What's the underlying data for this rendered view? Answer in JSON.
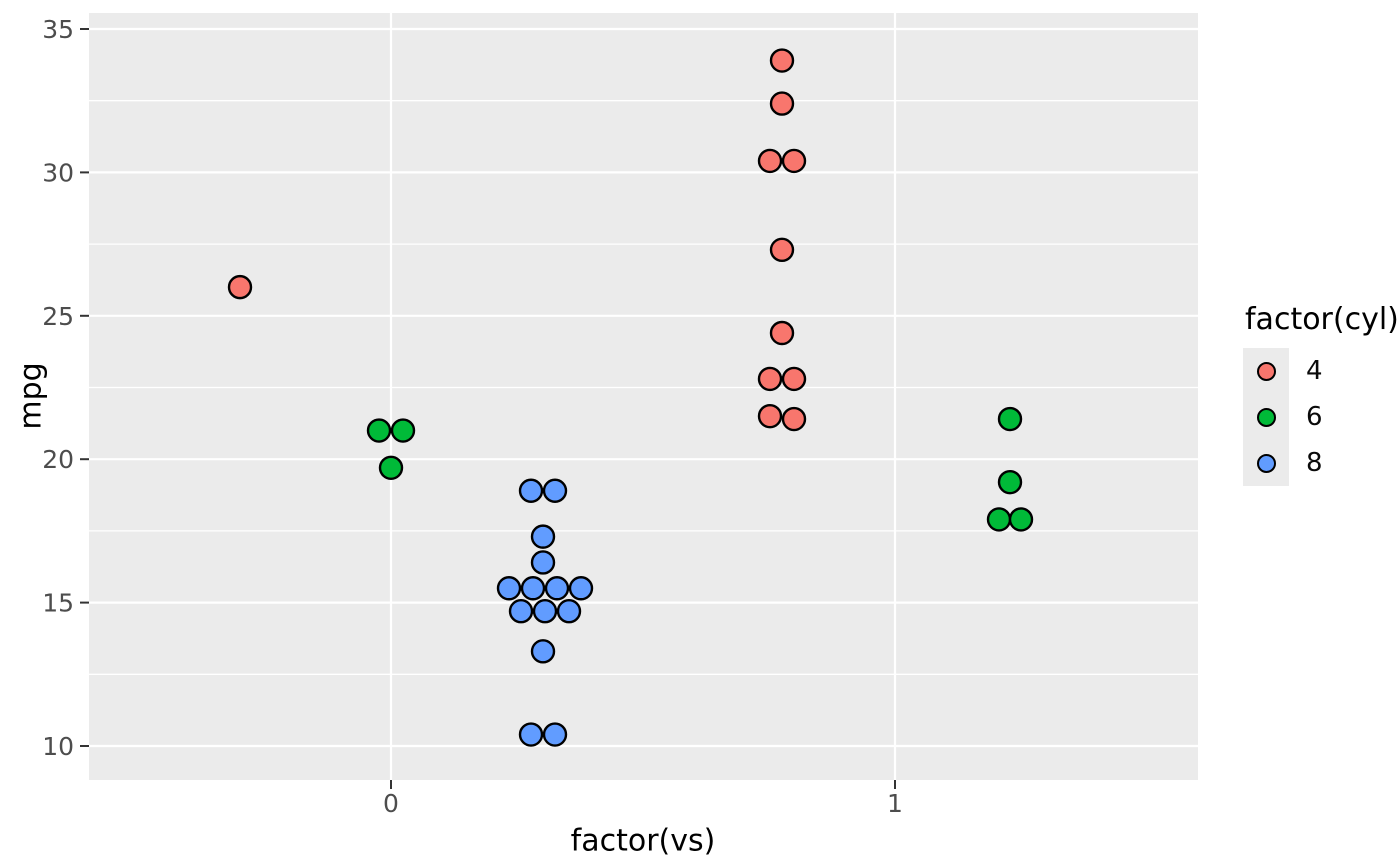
{
  "figure": {
    "background": "#FFFFFF",
    "panel_background": "#EBEBEB",
    "grid_color": "#FFFFFF",
    "tick_mark_color": "#333333",
    "tick_label_color": "#4D4D4D",
    "axis_title_color": "#000000"
  },
  "axes": {
    "x_title": "factor(vs)",
    "y_title": "mpg"
  },
  "legend": {
    "title": "factor(cyl)",
    "position": "right",
    "entries": [
      {
        "label": "4",
        "color": "#F8766D"
      },
      {
        "label": "6",
        "color": "#00BA38"
      },
      {
        "label": "8",
        "color": "#619CFF"
      }
    ]
  },
  "chart_data": {
    "type": "scatter",
    "variant": "beeswarm-dodged-by-group",
    "title": "",
    "xlabel": "factor(vs)",
    "ylabel": "mpg",
    "x_categories": [
      "0",
      "1"
    ],
    "y_ticks_major": [
      10,
      15,
      20,
      25,
      30,
      35
    ],
    "y_ticks_minor": [
      12.5,
      17.5,
      22.5,
      27.5,
      32.5
    ],
    "ylim": [
      8.8,
      35.6
    ],
    "grid": true,
    "legend_title": "factor(cyl)",
    "legend_position": "right",
    "point_style": {
      "stroke": "#000000",
      "stroke_width": 2.4,
      "radius": 11
    },
    "series": [
      {
        "name": "4",
        "fill": "#F8766D",
        "points": [
          {
            "vs": 0,
            "mpg": 26.0,
            "dx": -151
          },
          {
            "vs": 1,
            "mpg": 33.9,
            "dx": -113
          },
          {
            "vs": 1,
            "mpg": 32.4,
            "dx": -113
          },
          {
            "vs": 1,
            "mpg": 30.4,
            "dx": -125
          },
          {
            "vs": 1,
            "mpg": 30.4,
            "dx": -101
          },
          {
            "vs": 1,
            "mpg": 27.3,
            "dx": -113
          },
          {
            "vs": 1,
            "mpg": 24.4,
            "dx": -113
          },
          {
            "vs": 1,
            "mpg": 22.8,
            "dx": -125
          },
          {
            "vs": 1,
            "mpg": 22.8,
            "dx": -101
          },
          {
            "vs": 1,
            "mpg": 21.5,
            "dx": -125
          },
          {
            "vs": 1,
            "mpg": 21.4,
            "dx": -101
          }
        ]
      },
      {
        "name": "6",
        "fill": "#00BA38",
        "points": [
          {
            "vs": 0,
            "mpg": 21.0,
            "dx": -12
          },
          {
            "vs": 0,
            "mpg": 21.0,
            "dx": 12
          },
          {
            "vs": 0,
            "mpg": 19.7,
            "dx": 0
          },
          {
            "vs": 1,
            "mpg": 21.4,
            "dx": 115
          },
          {
            "vs": 1,
            "mpg": 19.2,
            "dx": 115
          },
          {
            "vs": 1,
            "mpg": 17.9,
            "dx": 104
          },
          {
            "vs": 1,
            "mpg": 17.9,
            "dx": 126
          }
        ]
      },
      {
        "name": "8",
        "fill": "#619CFF",
        "points": [
          {
            "vs": 0,
            "mpg": 18.9,
            "dx": 140
          },
          {
            "vs": 0,
            "mpg": 18.9,
            "dx": 164
          },
          {
            "vs": 0,
            "mpg": 17.3,
            "dx": 152
          },
          {
            "vs": 0,
            "mpg": 16.4,
            "dx": 152
          },
          {
            "vs": 0,
            "mpg": 15.5,
            "dx": 118
          },
          {
            "vs": 0,
            "mpg": 15.5,
            "dx": 142
          },
          {
            "vs": 0,
            "mpg": 15.5,
            "dx": 166
          },
          {
            "vs": 0,
            "mpg": 15.5,
            "dx": 190
          },
          {
            "vs": 0,
            "mpg": 14.7,
            "dx": 130
          },
          {
            "vs": 0,
            "mpg": 14.7,
            "dx": 154
          },
          {
            "vs": 0,
            "mpg": 14.7,
            "dx": 178
          },
          {
            "vs": 0,
            "mpg": 13.3,
            "dx": 152
          },
          {
            "vs": 0,
            "mpg": 10.4,
            "dx": 140
          },
          {
            "vs": 0,
            "mpg": 10.4,
            "dx": 164
          }
        ]
      }
    ]
  }
}
